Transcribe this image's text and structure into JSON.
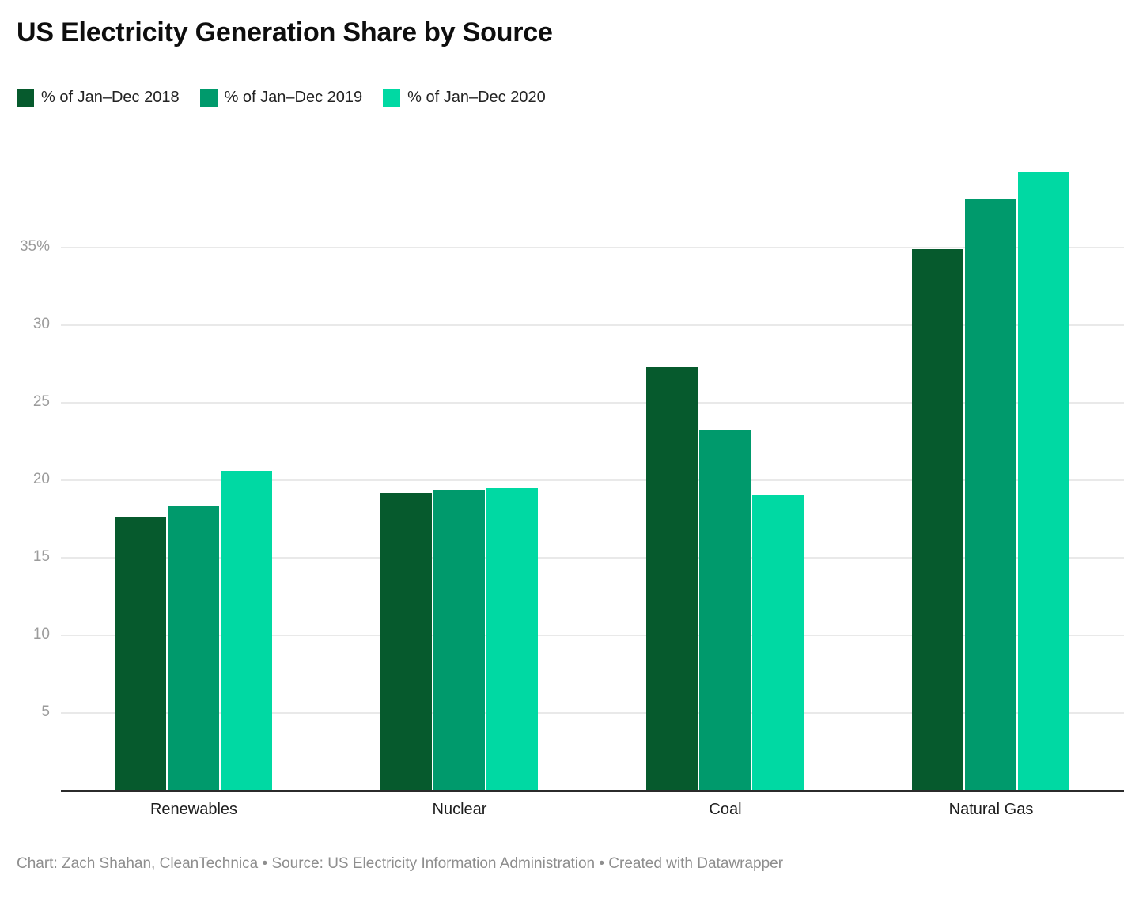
{
  "title": "US Electricity Generation Share by Source",
  "legend": {
    "items": [
      {
        "label": "% of Jan–Dec 2018",
        "color": "#065a2d"
      },
      {
        "label": "% of Jan–Dec 2019",
        "color": "#009a6c"
      },
      {
        "label": "% of Jan–Dec 2020",
        "color": "#00d9a3"
      }
    ]
  },
  "chart_data": {
    "type": "bar",
    "title": "US Electricity Generation Share by Source",
    "categories": [
      "Renewables",
      "Nuclear",
      "Coal",
      "Natural Gas"
    ],
    "series": [
      {
        "name": "% of Jan–Dec 2018",
        "color": "#065a2d",
        "values": [
          17.6,
          19.2,
          27.3,
          34.9
        ]
      },
      {
        "name": "% of Jan–Dec 2019",
        "color": "#009a6c",
        "values": [
          18.3,
          19.4,
          23.2,
          38.1
        ]
      },
      {
        "name": "% of Jan–Dec 2020",
        "color": "#00d9a3",
        "values": [
          20.6,
          19.5,
          19.1,
          39.9
        ]
      }
    ],
    "xlabel": "",
    "ylabel": "",
    "ylim": [
      0,
      41.3
    ],
    "yticks": [
      {
        "value": 5,
        "label": "5"
      },
      {
        "value": 10,
        "label": "10"
      },
      {
        "value": 15,
        "label": "15"
      },
      {
        "value": 20,
        "label": "20"
      },
      {
        "value": 25,
        "label": "25"
      },
      {
        "value": 30,
        "label": "30"
      },
      {
        "value": 35,
        "label": "35%"
      }
    ],
    "grid": true,
    "legend_position": "top"
  },
  "footer": {
    "text": "Chart: Zach Shahan, CleanTechnica • Source: US Electricity Information Administration • Created with Datawrapper"
  }
}
